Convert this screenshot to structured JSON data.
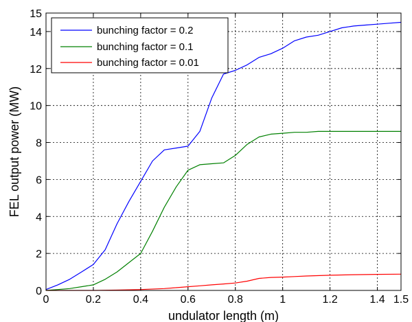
{
  "chart_data": {
    "type": "line",
    "title": "",
    "xlabel": "undulator length (m)",
    "ylabel": "FEL output power (MW)",
    "xlim": [
      0,
      1.5
    ],
    "ylim": [
      0,
      15
    ],
    "xticks": [
      0,
      0.2,
      0.4,
      0.6,
      0.8,
      1,
      1.2,
      1.4,
      1.5
    ],
    "xtick_labels": [
      "0",
      "0.2",
      "0.4",
      "0.6",
      "0.8",
      "1",
      "1.2",
      "1.4",
      "1.5"
    ],
    "yticks": [
      0,
      2,
      4,
      6,
      8,
      10,
      12,
      14,
      15
    ],
    "ytick_labels": [
      "0",
      "2",
      "4",
      "6",
      "8",
      "10",
      "12",
      "14",
      "15"
    ],
    "grid": true,
    "legend_position": "top-left",
    "series": [
      {
        "name": "bunching factor = 0.2",
        "color": "#0000ff",
        "x": [
          0,
          0.05,
          0.1,
          0.15,
          0.2,
          0.25,
          0.3,
          0.35,
          0.4,
          0.45,
          0.5,
          0.55,
          0.6,
          0.65,
          0.7,
          0.75,
          0.8,
          0.85,
          0.9,
          0.95,
          1.0,
          1.05,
          1.1,
          1.15,
          1.2,
          1.25,
          1.3,
          1.35,
          1.4,
          1.45,
          1.5
        ],
        "y": [
          0.05,
          0.3,
          0.6,
          1.0,
          1.4,
          2.2,
          3.6,
          4.8,
          5.9,
          7.0,
          7.6,
          7.7,
          7.8,
          8.6,
          10.4,
          11.7,
          11.9,
          12.2,
          12.6,
          12.8,
          13.1,
          13.5,
          13.7,
          13.8,
          14.0,
          14.2,
          14.3,
          14.35,
          14.4,
          14.45,
          14.5
        ]
      },
      {
        "name": "bunching factor = 0.1",
        "color": "#008000",
        "x": [
          0,
          0.05,
          0.1,
          0.15,
          0.2,
          0.25,
          0.3,
          0.35,
          0.4,
          0.45,
          0.5,
          0.55,
          0.6,
          0.65,
          0.7,
          0.75,
          0.8,
          0.85,
          0.9,
          0.95,
          1.0,
          1.05,
          1.1,
          1.15,
          1.2,
          1.3,
          1.4,
          1.5
        ],
        "y": [
          0.0,
          0.05,
          0.1,
          0.2,
          0.3,
          0.6,
          1.0,
          1.5,
          2.0,
          3.2,
          4.5,
          5.6,
          6.5,
          6.8,
          6.85,
          6.9,
          7.3,
          7.9,
          8.3,
          8.45,
          8.5,
          8.55,
          8.55,
          8.6,
          8.6,
          8.6,
          8.6,
          8.6
        ]
      },
      {
        "name": "bunching factor = 0.01",
        "color": "#ff0000",
        "x": [
          0,
          0.2,
          0.3,
          0.4,
          0.5,
          0.55,
          0.6,
          0.65,
          0.7,
          0.75,
          0.8,
          0.85,
          0.9,
          0.95,
          1.0,
          1.05,
          1.1,
          1.2,
          1.3,
          1.4,
          1.5
        ],
        "y": [
          0.0,
          0.0,
          0.02,
          0.05,
          0.1,
          0.15,
          0.2,
          0.25,
          0.3,
          0.35,
          0.4,
          0.5,
          0.65,
          0.7,
          0.72,
          0.75,
          0.78,
          0.82,
          0.85,
          0.87,
          0.88
        ]
      }
    ]
  }
}
